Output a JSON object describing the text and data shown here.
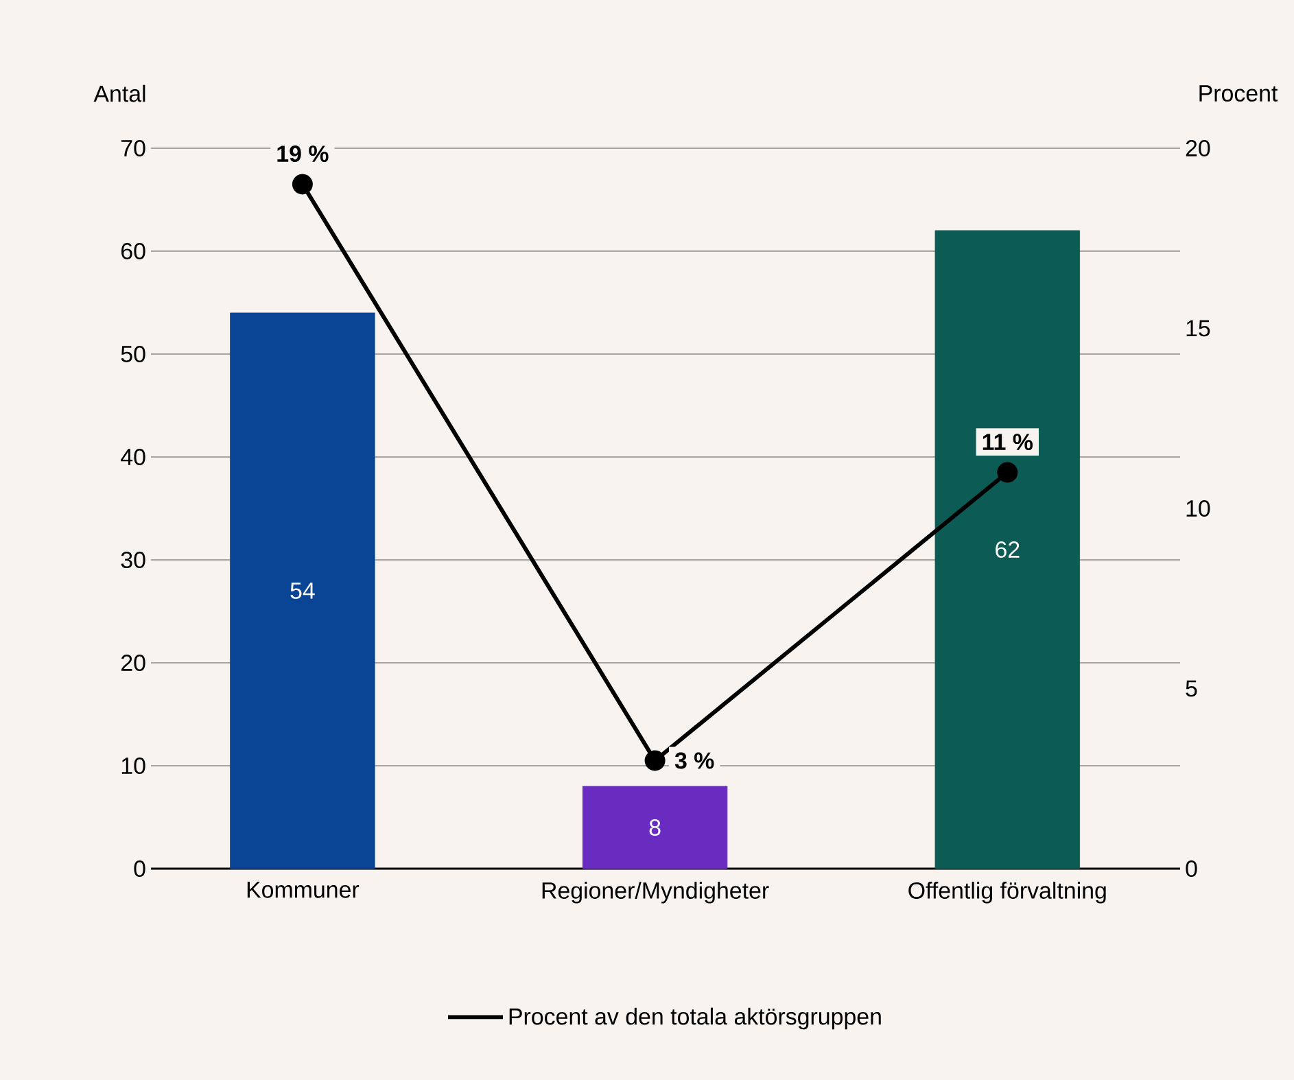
{
  "chart_data": {
    "type": "bar",
    "categories": [
      "Kommuner",
      "Regioner/Myndigheter",
      "Offentlig förvaltning"
    ],
    "values": [
      54,
      8,
      62
    ],
    "colors": [
      "#0a4595",
      "#6a2cc0",
      "#0c5b54"
    ],
    "data_labels": true,
    "ylabel": "Antal",
    "y2label": "Procent",
    "ylim": [
      0,
      70
    ],
    "yticks": [
      0,
      10,
      20,
      30,
      40,
      50,
      60,
      70
    ],
    "y2lim": [
      0,
      20
    ],
    "y2ticks": [
      0,
      5,
      10,
      15,
      20
    ],
    "grid": "y",
    "legend": "bottom",
    "series": [
      {
        "name": "Procent av den totala aktörsgruppen",
        "type": "line",
        "axis": "y2",
        "color": "#000000",
        "marker": "circle",
        "values": [
          19,
          3,
          11
        ],
        "value_labels": [
          "19 %",
          "3 %",
          "11 %"
        ]
      }
    ]
  }
}
